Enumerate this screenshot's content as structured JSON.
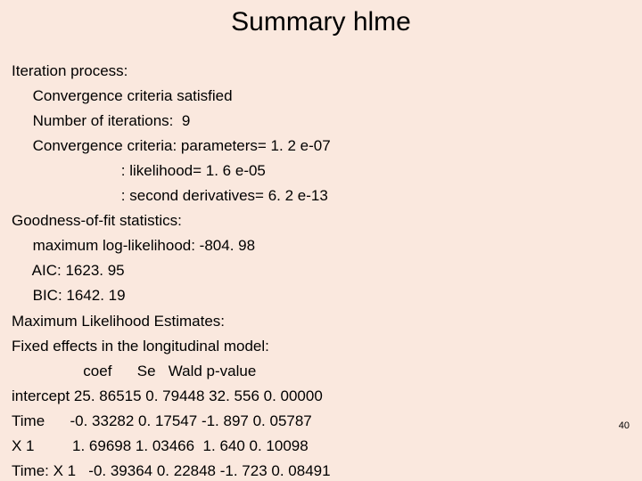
{
  "title": "Summary hlme",
  "page_number": "40",
  "background_color": "#fae8de",
  "text_color": "#000000",
  "title_fontsize": 30,
  "body_fontsize": 17,
  "lines": {
    "l0": "Iteration process:",
    "l1": "     Convergence criteria satisfied",
    "l2": "     Number of iterations:  9",
    "l3": "     Convergence criteria: parameters= 1. 2 e-07",
    "l4": "                          : likelihood= 1. 6 e-05",
    "l5": "                          : second derivatives= 6. 2 e-13",
    "l6": "Goodness-of-fit statistics:",
    "l7": "     maximum log-likelihood: -804. 98",
    "l8": "     AIC: 1623. 95",
    "l9": "     BIC: 1642. 19",
    "l10": "Maximum Likelihood Estimates:",
    "l11": "Fixed effects in the longitudinal model:",
    "l12": "                 coef      Se   Wald p-value",
    "l13": "intercept 25. 86515 0. 79448 32. 556 0. 00000",
    "l14": "Time      -0. 33282 0. 17547 -1. 897 0. 05787",
    "l15": "X 1         1. 69698 1. 03466  1. 640 0. 10098",
    "l16": "Time: X 1   -0. 39364 0. 22848 -1. 723 0. 08491"
  }
}
